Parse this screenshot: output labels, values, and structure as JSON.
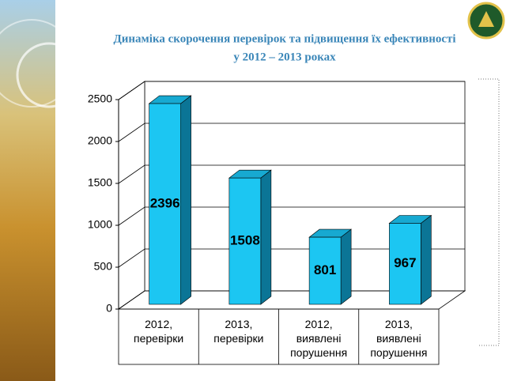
{
  "chart_data": {
    "type": "bar3d",
    "title": [
      "Динаміка скорочення перевірок та підвищення їх ефективності",
      "у 2012 – 2013 роках"
    ],
    "categories": [
      "2012, перевірки",
      "2013, перевірки",
      "2012, виявлені порушення",
      "2013, виявлені порушення"
    ],
    "values": [
      2396,
      1508,
      801,
      967
    ],
    "color": "#1cc6f2",
    "ylim": [
      0,
      2500
    ],
    "yticks": [
      0,
      500,
      1000,
      1500,
      2000,
      2500
    ],
    "grid": true
  }
}
